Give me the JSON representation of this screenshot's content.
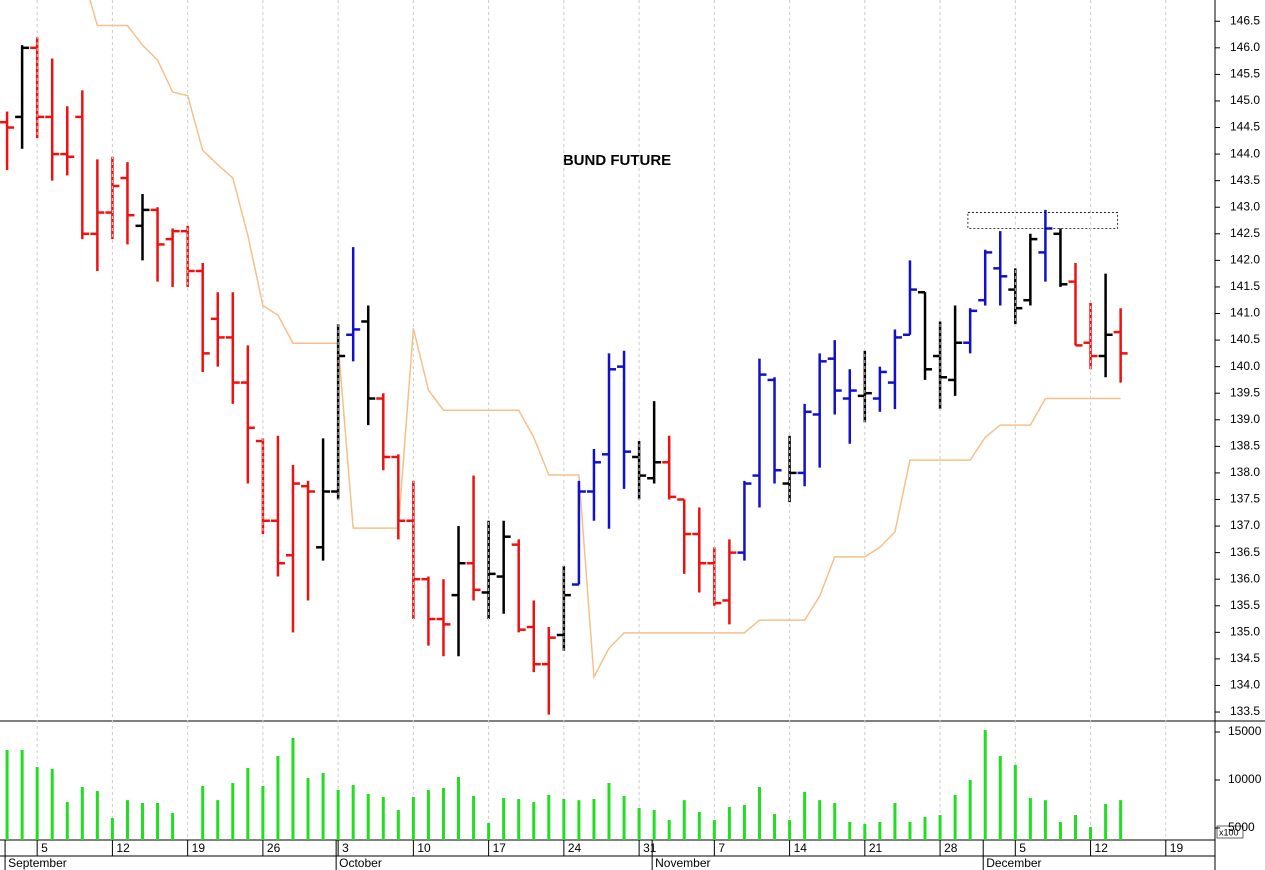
{
  "chart_data": [
    {
      "type": "ohlc",
      "title": "BUND FUTURE",
      "open": [
        144.6,
        144.7,
        146.0,
        144.7,
        144.0,
        144.7,
        142.5,
        142.9,
        143.55,
        142.65,
        142.95,
        142.4,
        142.55,
        141.8,
        140.9,
        140.55,
        139.7,
        138.6,
        137.1,
        136.45,
        137.75,
        136.6,
        137.65,
        140.6,
        140.85,
        139.4,
        138.3,
        137.1,
        136.0,
        135.25,
        135.7,
        136.3,
        135.75,
        136.05,
        136.65,
        135.1,
        134.4,
        134.95,
        135.9,
        137.65,
        138.35,
        140.0,
        138.3,
        137.9,
        138.2,
        137.5,
        136.85,
        136.3,
        135.6,
        136.5,
        137.95,
        139.75,
        137.8,
        138.0,
        139.1,
        140.15,
        139.4,
        139.45,
        139.4,
        139.7,
        140.6,
        141.4,
        140.2,
        139.75,
        140.45,
        141.25,
        141.85,
        141.45,
        141.25,
        142.15,
        142.5,
        141.6,
        140.45,
        140.2,
        140.65
      ],
      "high": [
        144.8,
        146.05,
        146.2,
        145.8,
        144.9,
        145.2,
        143.9,
        143.95,
        143.85,
        143.25,
        143.0,
        142.6,
        142.65,
        141.95,
        141.4,
        141.4,
        140.4,
        138.65,
        138.7,
        138.15,
        137.85,
        138.65,
        140.8,
        142.25,
        141.15,
        139.5,
        138.35,
        137.85,
        136.05,
        136.0,
        137.0,
        137.95,
        137.1,
        137.1,
        136.75,
        135.6,
        135.1,
        136.25,
        137.85,
        138.45,
        140.25,
        140.3,
        138.6,
        139.35,
        138.7,
        137.5,
        137.35,
        136.6,
        136.75,
        137.85,
        140.15,
        139.8,
        138.7,
        139.3,
        140.25,
        140.5,
        139.95,
        140.3,
        140.0,
        140.7,
        142.0,
        141.4,
        140.85,
        141.15,
        141.1,
        142.2,
        142.55,
        141.85,
        142.5,
        142.95,
        142.6,
        141.95,
        141.2,
        141.75,
        141.1
      ],
      "low": [
        143.7,
        144.1,
        144.3,
        143.5,
        143.6,
        142.4,
        141.8,
        142.4,
        142.3,
        142.0,
        141.6,
        141.5,
        141.5,
        139.9,
        140.0,
        139.3,
        137.8,
        136.85,
        136.05,
        135.0,
        135.6,
        136.35,
        137.5,
        140.1,
        138.9,
        138.05,
        136.75,
        135.25,
        134.75,
        134.55,
        134.55,
        135.6,
        135.25,
        135.35,
        135.0,
        134.25,
        133.45,
        134.65,
        135.9,
        137.1,
        136.95,
        137.7,
        137.5,
        137.8,
        137.5,
        136.1,
        135.75,
        135.5,
        135.15,
        136.35,
        137.35,
        137.8,
        137.45,
        137.75,
        138.1,
        139.1,
        138.55,
        138.95,
        139.15,
        139.2,
        140.6,
        139.75,
        139.2,
        139.45,
        140.25,
        141.15,
        141.15,
        140.8,
        141.15,
        141.6,
        141.5,
        140.4,
        139.95,
        139.8,
        139.7
      ],
      "close": [
        144.5,
        146.0,
        144.7,
        144.0,
        143.95,
        142.5,
        142.9,
        143.4,
        142.85,
        142.95,
        142.3,
        142.55,
        141.8,
        140.25,
        140.55,
        139.7,
        138.85,
        137.1,
        136.3,
        137.8,
        137.65,
        137.65,
        140.2,
        140.7,
        139.4,
        138.3,
        137.1,
        136.0,
        135.25,
        135.15,
        136.3,
        135.8,
        136.1,
        136.8,
        135.05,
        134.4,
        134.9,
        135.7,
        137.65,
        138.2,
        139.95,
        138.4,
        137.95,
        138.2,
        137.55,
        136.85,
        136.3,
        135.55,
        136.5,
        137.8,
        139.85,
        138.05,
        138.0,
        139.15,
        140.1,
        139.55,
        139.55,
        139.5,
        139.9,
        140.55,
        141.45,
        139.95,
        139.8,
        140.45,
        141.05,
        142.15,
        141.7,
        141.1,
        142.4,
        142.6,
        141.55,
        140.4,
        140.2,
        140.6,
        140.25
      ],
      "color_codes": "rkrrrrrrrkrrrrrrrrrrrkkbkrrrrrkrkkrrrkbbbbkkrrrrrbbbkbbbbkbbbkkkbbbkkbkrrkr",
      "palette": {
        "r": "#ee1111",
        "k": "#000000",
        "b": "#1111cc"
      },
      "line": {
        "color": "#f5c08a",
        "values": [
          null,
          null,
          null,
          null,
          null,
          147.4,
          146.42,
          146.42,
          146.42,
          146.05,
          145.77,
          145.17,
          145.1,
          144.07,
          143.8,
          143.55,
          142.47,
          141.15,
          140.97,
          140.44,
          140.44,
          140.44,
          140.44,
          136.96,
          136.96,
          136.96,
          136.96,
          140.72,
          139.56,
          139.18,
          139.18,
          139.18,
          139.18,
          139.18,
          139.18,
          138.67,
          137.96,
          137.96,
          137.96,
          134.16,
          134.7,
          134.99,
          134.99,
          134.99,
          134.99,
          134.99,
          134.99,
          134.99,
          134.99,
          134.99,
          135.23,
          135.23,
          135.23,
          135.23,
          135.68,
          136.42,
          136.42,
          136.42,
          136.6,
          136.89,
          138.24,
          138.24,
          138.24,
          138.24,
          138.24,
          138.67,
          138.9,
          138.9,
          138.9,
          139.4,
          139.4,
          139.4,
          139.4,
          139.4,
          139.4
        ]
      },
      "box": {
        "from": 63.85,
        "to": 73.8,
        "low": 142.6,
        "high": 142.9
      },
      "ylim": [
        133.35,
        146.9
      ],
      "yticks": [
        133.5,
        {
          "value": 134,
          "label": "134.0"
        },
        134.5,
        {
          "value": 135,
          "label": "135.0"
        },
        135.5,
        {
          "value": 136,
          "label": "136.0"
        },
        136.5,
        {
          "value": 137,
          "label": "137.0"
        },
        137.5,
        {
          "value": 138,
          "label": "138.0"
        },
        138.5,
        {
          "value": 139,
          "label": "139.0"
        },
        139.5,
        {
          "value": 140,
          "label": "140.0"
        },
        140.5,
        {
          "value": 141,
          "label": "141.0"
        },
        141.5,
        {
          "value": 142,
          "label": "142.0"
        },
        142.5,
        {
          "value": 143,
          "label": "143.0"
        },
        143.5,
        {
          "value": 144,
          "label": "144.0"
        },
        144.5,
        {
          "value": 145,
          "label": "145.0"
        },
        145.5,
        {
          "value": 146,
          "label": "146.0"
        },
        146.5
      ],
      "xlim": [
        -0.47,
        80.27
      ],
      "xticks": [
        {
          "value": 2,
          "label": "5"
        },
        {
          "value": 7,
          "label": "12"
        },
        {
          "value": 12,
          "label": "19"
        },
        {
          "value": 17,
          "label": "26"
        },
        {
          "value": 22,
          "label": "3"
        },
        {
          "value": 27,
          "label": "10"
        },
        {
          "value": 32,
          "label": "17"
        },
        {
          "value": 37,
          "label": "24"
        },
        {
          "value": 42,
          "label": "31"
        },
        {
          "value": 47,
          "label": "7"
        },
        {
          "value": 52,
          "label": "14"
        },
        {
          "value": 57,
          "label": "21"
        },
        {
          "value": 62,
          "label": "28"
        },
        {
          "value": 67,
          "label": "5"
        },
        {
          "value": 72,
          "label": "12"
        },
        {
          "value": 77,
          "label": "19"
        }
      ],
      "month_ticks": [
        {
          "value": 0,
          "label": "September"
        },
        {
          "value": 22,
          "label": "October"
        },
        {
          "value": 43,
          "label": "November"
        },
        {
          "value": 65,
          "label": "December"
        }
      ],
      "grid": true
    },
    {
      "type": "bar",
      "color": "#22dd22",
      "unit_note": "x100",
      "values": [
        13125,
        13125,
        11350,
        11150,
        7700,
        9270,
        8850,
        6040,
        7900,
        7600,
        7600,
        6560,
        null,
        9375,
        7900,
        9690,
        11250,
        9375,
        12500,
        14375,
        10200,
        10730,
        8960,
        9480,
        8540,
        8230,
        6875,
        8230,
        8960,
        9170,
        10310,
        8330,
        5520,
        8125,
        8020,
        7700,
        8440,
        8020,
        7900,
        8020,
        9690,
        8330,
        7080,
        6875,
        5830,
        7900,
        6670,
        5830,
        7190,
        7400,
        9270,
        6460,
        5830,
        8750,
        7900,
        7600,
        5625,
        5420,
        5625,
        7600,
        5625,
        6150,
        6350,
        8440,
        10000,
        15200,
        12500,
        11560,
        8125,
        7900,
        5625,
        6350,
        5100,
        7500,
        7900
      ],
      "ylim": [
        3750,
        16040
      ],
      "yticks": [
        5000,
        10000,
        15000
      ]
    }
  ]
}
